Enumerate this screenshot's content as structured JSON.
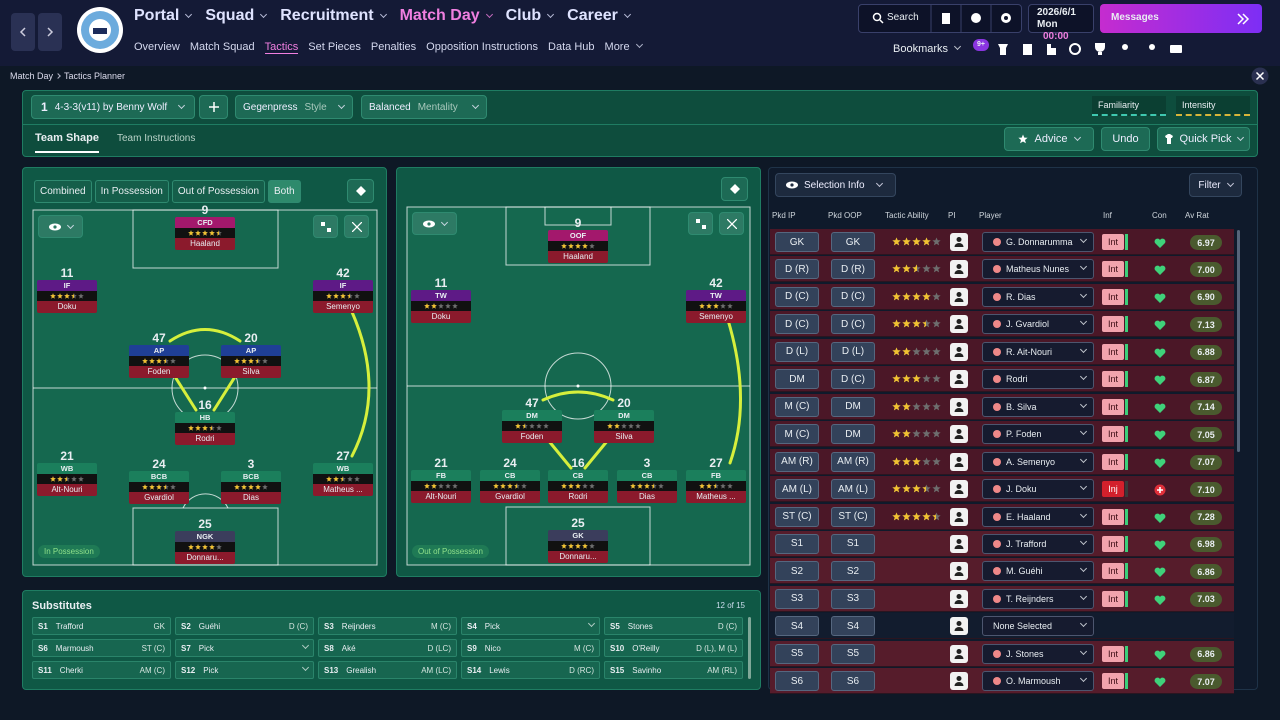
{
  "nav": {
    "menus": [
      "Portal",
      "Squad",
      "Recruitment",
      "Match Day",
      "Club",
      "Career"
    ],
    "submenu": [
      "Overview",
      "Match Squad",
      "Tactics",
      "Set Pieces",
      "Penalties",
      "Opposition Instructions",
      "Data Hub",
      "More"
    ],
    "search": "Search",
    "date": "2026/6/1",
    "weekday": "Mon",
    "time": "00:00",
    "messages": "Messages",
    "bookmarks": "Bookmarks",
    "notifications": "9+"
  },
  "breadcrumb": [
    "Match Day",
    "Tactics Planner"
  ],
  "tactic": {
    "slot": "1",
    "name": "4-3-3(v11) by Benny Wolf",
    "style": "Gegenpress",
    "style_label": "Style",
    "mentality": "Balanced",
    "mentality_label": "Mentality",
    "familiarity": "Familiarity",
    "intensity": "Intensity"
  },
  "tabs": [
    "Team Shape",
    "Team Instructions"
  ],
  "actions": [
    "Advice",
    "Undo",
    "Quick Pick"
  ],
  "phases": [
    "Combined",
    "In Possession",
    "Out of Possession",
    "Both"
  ],
  "pitches": [
    {
      "label": "In Possession",
      "players": [
        {
          "number": 9,
          "role": "CFD",
          "name": "Haaland",
          "ability": 4.5,
          "color": "#a3186c"
        },
        {
          "number": 11,
          "role": "IF",
          "name": "Doku",
          "ability": 3.5,
          "color": "#5e1a86"
        },
        {
          "number": 42,
          "role": "IF",
          "name": "Semenyo",
          "ability": 3.5,
          "color": "#5e1a86"
        },
        {
          "number": 47,
          "role": "AP",
          "name": "Foden",
          "ability": 3.5,
          "color": "#1f3f96"
        },
        {
          "number": 20,
          "role": "AP",
          "name": "Silva",
          "ability": 3.5,
          "color": "#1f3f96"
        },
        {
          "number": 16,
          "role": "HB",
          "name": "Rodri",
          "ability": 3.5,
          "color": "#1b7f5c"
        },
        {
          "number": 21,
          "role": "WB",
          "name": "Alt-Nouri",
          "ability": 2.5,
          "color": "#1b7f5c"
        },
        {
          "number": 24,
          "role": "BCB",
          "name": "Gvardiol",
          "ability": 3.5,
          "color": "#1b7f5c"
        },
        {
          "number": 3,
          "role": "BCB",
          "name": "Dias",
          "ability": 4,
          "color": "#1b7f5c"
        },
        {
          "number": 27,
          "role": "WB",
          "name": "Matheus ...",
          "ability": 2.5,
          "color": "#1b7f5c"
        },
        {
          "number": 25,
          "role": "NGK",
          "name": "Donnaru...",
          "ability": 4,
          "color": "#3b3d5c"
        }
      ]
    },
    {
      "label": "Out of Possession",
      "players": [
        {
          "number": 9,
          "role": "OOF",
          "name": "Haaland",
          "ability": 4,
          "color": "#a3186c"
        },
        {
          "number": 11,
          "role": "TW",
          "name": "Doku",
          "ability": 2,
          "color": "#5e1a86"
        },
        {
          "number": 42,
          "role": "TW",
          "name": "Semenyo",
          "ability": 3,
          "color": "#5e1a86"
        },
        {
          "number": 47,
          "role": "DM",
          "name": "Foden",
          "ability": 1.5,
          "color": "#1b7f5c"
        },
        {
          "number": 20,
          "role": "DM",
          "name": "Silva",
          "ability": 2,
          "color": "#1b7f5c"
        },
        {
          "number": 21,
          "role": "FB",
          "name": "Alt-Nouri",
          "ability": 2,
          "color": "#1b7f5c"
        },
        {
          "number": 24,
          "role": "CB",
          "name": "Gvardiol",
          "ability": 3.5,
          "color": "#1b7f5c"
        },
        {
          "number": 16,
          "role": "CB",
          "name": "Rodri",
          "ability": 3,
          "color": "#1b7f5c"
        },
        {
          "number": 3,
          "role": "CB",
          "name": "Dias",
          "ability": 3.5,
          "color": "#1b7f5c"
        },
        {
          "number": 27,
          "role": "FB",
          "name": "Matheus ...",
          "ability": 2.5,
          "color": "#1b7f5c"
        },
        {
          "number": 25,
          "role": "GK",
          "name": "Donnaru...",
          "ability": 4,
          "color": "#3b3d5c"
        }
      ]
    }
  ],
  "substitutes": {
    "title": "Substitutes",
    "count": "12 of 15",
    "slots": [
      {
        "slot": "S1",
        "name": "Trafford",
        "position": "GK"
      },
      {
        "slot": "S2",
        "name": "Guéhi",
        "position": "D (C)"
      },
      {
        "slot": "S3",
        "name": "Reijnders",
        "position": "M (C)"
      },
      {
        "slot": "S4",
        "name": "Pick"
      },
      {
        "slot": "S5",
        "name": "Stones",
        "position": "D (C)"
      },
      {
        "slot": "S6",
        "name": "Marmoush",
        "position": "ST (C)"
      },
      {
        "slot": "S7",
        "name": "Pick"
      },
      {
        "slot": "S8",
        "name": "Aké",
        "position": "D (LC)"
      },
      {
        "slot": "S9",
        "name": "Nico",
        "position": "M (C)"
      },
      {
        "slot": "S10",
        "name": "O'Reilly",
        "position": "D (L), M (L)"
      },
      {
        "slot": "S11",
        "name": "Cherki",
        "position": "AM (C)"
      },
      {
        "slot": "S12",
        "name": "Pick"
      },
      {
        "slot": "S13",
        "name": "Grealish",
        "position": "AM (LC)"
      },
      {
        "slot": "S14",
        "name": "Lewis",
        "position": "D (RC)"
      },
      {
        "slot": "S15",
        "name": "Savinho",
        "position": "AM (RL)"
      }
    ]
  },
  "selection": {
    "button": "Selection Info",
    "filter": "Filter",
    "columns": [
      "Pkd IP",
      "Pkd OOP",
      "Tactic Ability",
      "PI",
      "Player",
      "Inf",
      "Con",
      "Av Rat"
    ],
    "rows": [
      {
        "ip": "GK",
        "oop": "GK",
        "ability": 4,
        "player": "G. Donnarumma",
        "inf": "Int",
        "rating": "6.97"
      },
      {
        "ip": "D (R)",
        "oop": "D (R)",
        "ability": 2.5,
        "player": "Matheus Nunes",
        "inf": "Int",
        "rating": "7.00"
      },
      {
        "ip": "D (C)",
        "oop": "D (C)",
        "ability": 4,
        "player": "R. Dias",
        "inf": "Int",
        "rating": "6.90"
      },
      {
        "ip": "D (C)",
        "oop": "D (C)",
        "ability": 3.5,
        "player": "J. Gvardiol",
        "inf": "Int",
        "rating": "7.13"
      },
      {
        "ip": "D (L)",
        "oop": "D (L)",
        "ability": 2,
        "player": "R. Ait-Nouri",
        "inf": "Int",
        "rating": "6.88"
      },
      {
        "ip": "DM",
        "oop": "D (C)",
        "ability": 3,
        "player": "Rodri",
        "inf": "Int",
        "rating": "6.87"
      },
      {
        "ip": "M (C)",
        "oop": "DM",
        "ability": 2,
        "player": "B. Silva",
        "inf": "Int",
        "rating": "7.14"
      },
      {
        "ip": "M (C)",
        "oop": "DM",
        "ability": 2,
        "player": "P. Foden",
        "inf": "Int",
        "rating": "7.05"
      },
      {
        "ip": "AM (R)",
        "oop": "AM (R)",
        "ability": 3,
        "player": "A. Semenyo",
        "inf": "Int",
        "rating": "7.07"
      },
      {
        "ip": "AM (L)",
        "oop": "AM (L)",
        "ability": 3.5,
        "player": "J. Doku",
        "inf": "Inj",
        "injured": true,
        "rating": "7.10"
      },
      {
        "ip": "ST (C)",
        "oop": "ST (C)",
        "ability": 4.5,
        "player": "E. Haaland",
        "inf": "Int",
        "rating": "7.28"
      },
      {
        "ip": "S1",
        "oop": "S1",
        "player": "J. Trafford",
        "inf": "Int",
        "rating": "6.98"
      },
      {
        "ip": "S2",
        "oop": "S2",
        "player": "M. Guéhi",
        "inf": "Int",
        "rating": "6.86"
      },
      {
        "ip": "S3",
        "oop": "S3",
        "player": "T. Reijnders",
        "inf": "Int",
        "rating": "7.03"
      },
      {
        "ip": "S4",
        "oop": "S4",
        "player": "None Selected"
      },
      {
        "ip": "S5",
        "oop": "S5",
        "player": "J. Stones",
        "inf": "Int",
        "rating": "6.86"
      },
      {
        "ip": "S6",
        "oop": "S6",
        "player": "O. Marmoush",
        "inf": "Int",
        "rating": "7.07"
      }
    ]
  }
}
